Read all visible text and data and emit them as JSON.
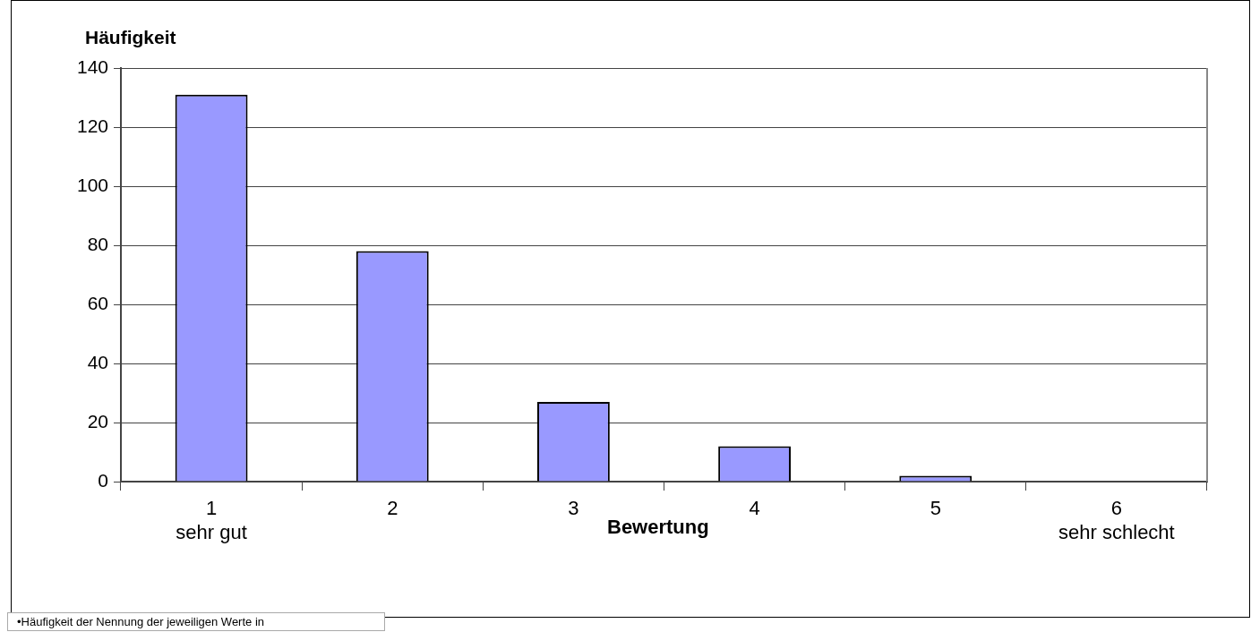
{
  "chart_data": {
    "type": "bar",
    "ylabel": "Häufigkeit",
    "xlabel": "Bewertung",
    "categories": [
      "1\nsehr gut",
      "2",
      "3",
      "4",
      "5",
      "6\nsehr schlecht"
    ],
    "values": [
      131,
      78,
      27,
      12,
      2,
      0
    ],
    "color": "#9999ff",
    "ylim": [
      0,
      140
    ],
    "yticks": [
      0,
      20,
      40,
      60,
      80,
      100,
      120,
      140
    ],
    "grid": "y",
    "legend": false,
    "annotations": [
      "•Häufigkeit der Nennung der jeweiligen Werte in"
    ]
  }
}
